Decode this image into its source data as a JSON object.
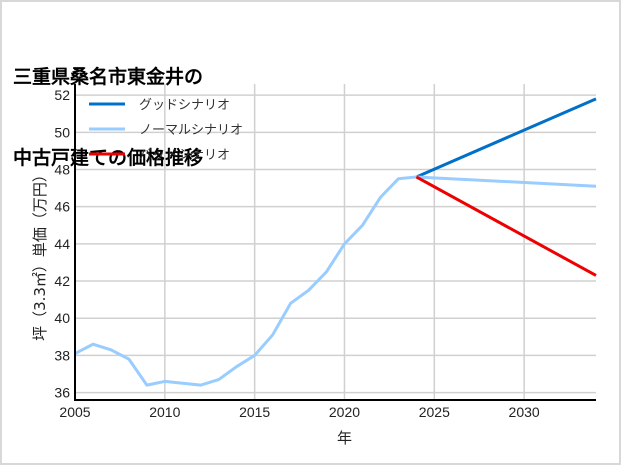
{
  "chart_data": {
    "type": "line",
    "title": "三重県桑名市東金井の\n中古戸建ての価格推移",
    "title_lines": [
      "三重県桑名市東金井の",
      "中古戸建ての価格推移"
    ],
    "xlabel": "年",
    "ylabel": "坪（3.3㎡）単価（万円）",
    "xlim": [
      2005,
      2034
    ],
    "ylim": [
      35.6,
      52.6
    ],
    "x_ticks": [
      2005,
      2010,
      2015,
      2020,
      2025,
      2030
    ],
    "y_ticks": [
      36,
      38,
      40,
      42,
      44,
      46,
      48,
      50,
      52
    ],
    "grid": true,
    "legend_position": "upper left",
    "series": [
      {
        "name": "グッドシナリオ",
        "color": "#0070c8",
        "x": [
          2024,
          2034
        ],
        "values": [
          47.6,
          51.8
        ]
      },
      {
        "name": "ノーマルシナリオ",
        "color": "#99ccff",
        "x": [
          2005,
          2006,
          2007,
          2008,
          2009,
          2010,
          2011,
          2012,
          2013,
          2014,
          2015,
          2016,
          2017,
          2018,
          2019,
          2020,
          2021,
          2022,
          2023,
          2024,
          2034
        ],
        "values": [
          38.1,
          38.6,
          38.3,
          37.8,
          36.4,
          36.6,
          36.5,
          36.4,
          36.7,
          37.4,
          38.0,
          39.1,
          40.8,
          41.5,
          42.5,
          44.0,
          45.0,
          46.5,
          47.5,
          47.6,
          47.1
        ]
      },
      {
        "name": "バッドシナリオ",
        "color": "#ee0000",
        "x": [
          2024,
          2034
        ],
        "values": [
          47.6,
          42.3
        ]
      }
    ]
  }
}
